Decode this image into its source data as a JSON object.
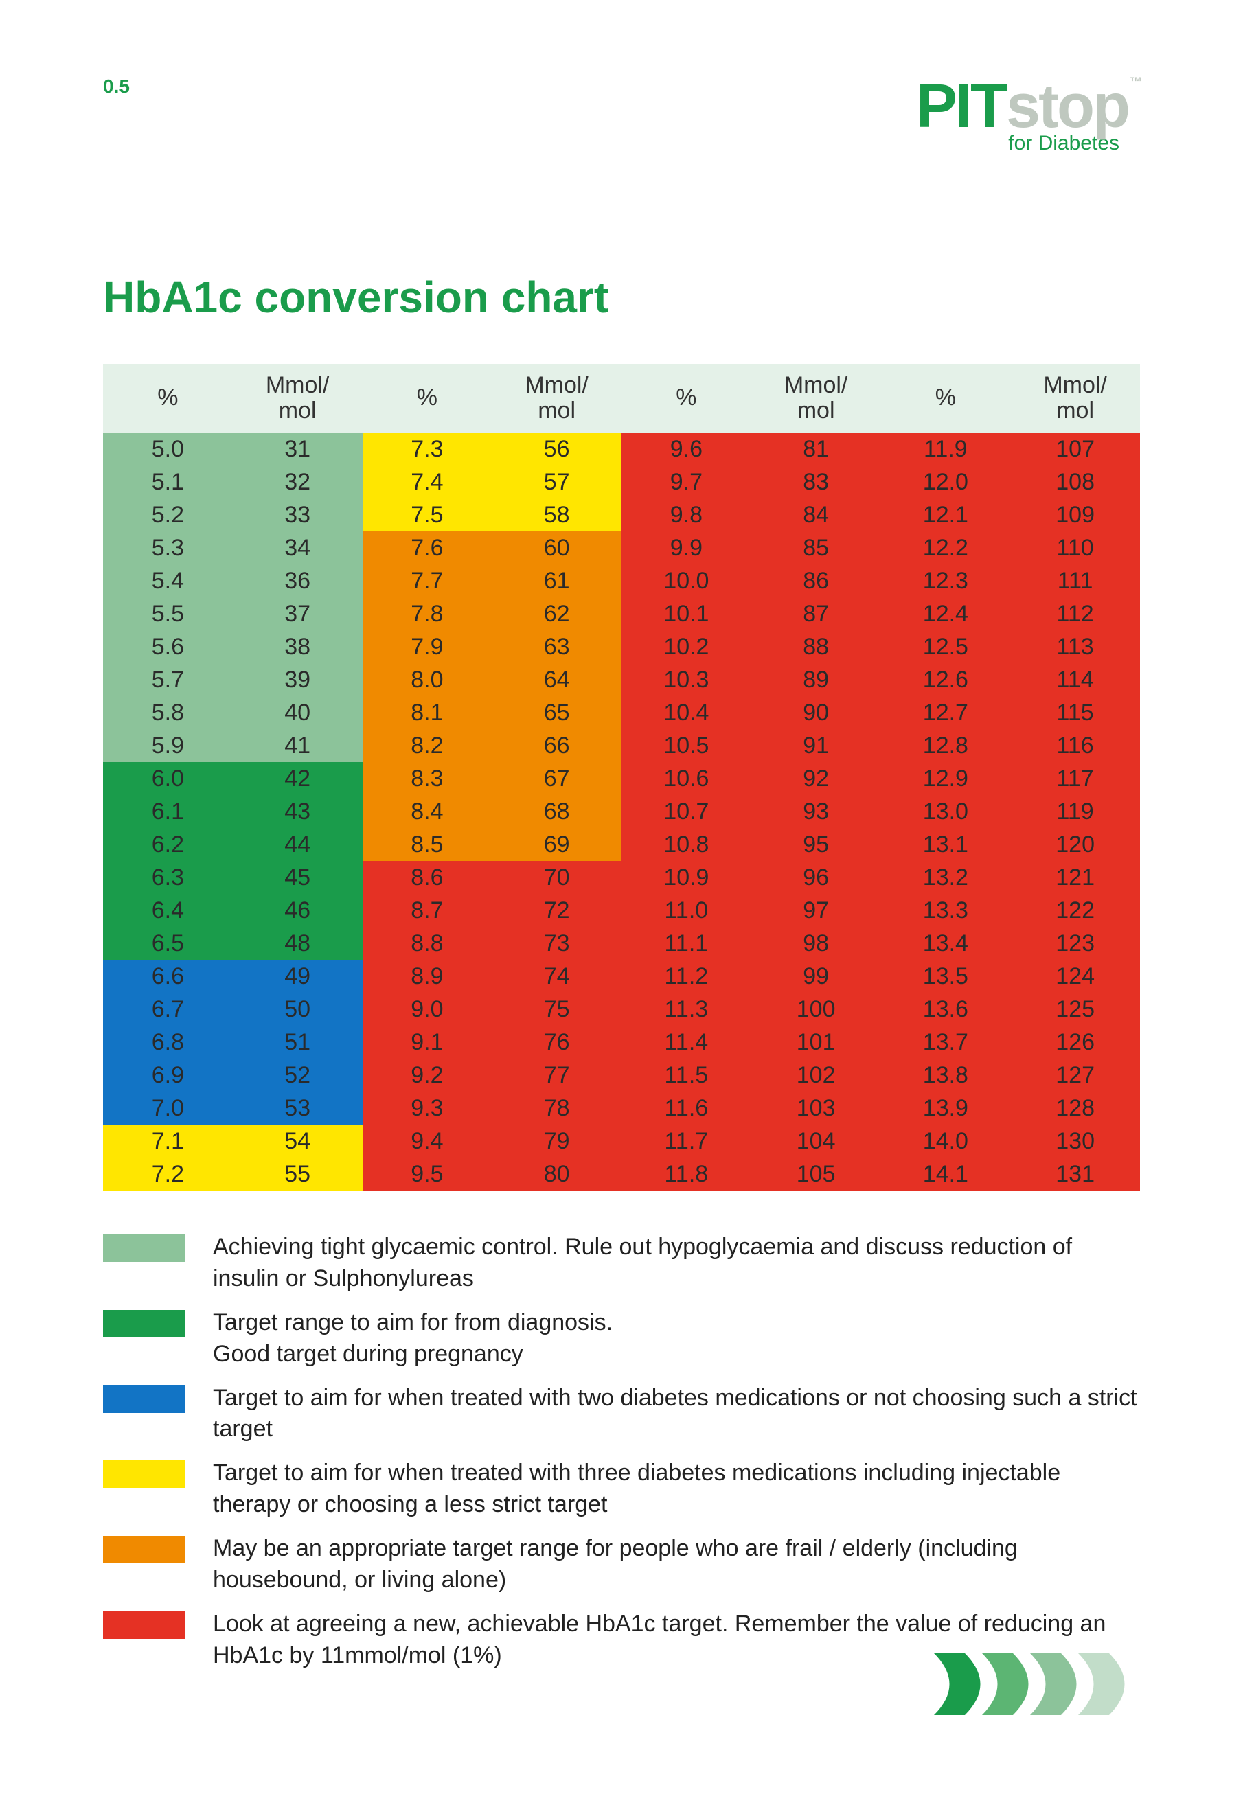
{
  "page_number": "0.5",
  "brand": {
    "pit": "PIT",
    "stop": "stop",
    "tm": "™",
    "sub": "for Diabetes",
    "dots": "▸ ▸ ▸"
  },
  "title": "HbA1c conversion chart",
  "columns": [
    "%",
    "Mmol/\nmol",
    "%",
    "Mmol/\nmol",
    "%",
    "Mmol/\nmol",
    "%",
    "Mmol/\nmol"
  ],
  "colors": {
    "light_green": "#8cc39a",
    "dark_green": "#1a9c4b",
    "blue": "#1274c5",
    "yellow": "#ffe600",
    "orange": "#f08a00",
    "red": "#e53124",
    "header": "#e4f1e8"
  },
  "rows": [
    {
      "c": [
        [
          "5.0",
          "light_green"
        ],
        [
          "31",
          "light_green"
        ],
        [
          "7.3",
          "yellow"
        ],
        [
          "56",
          "yellow"
        ],
        [
          "9.6",
          "red"
        ],
        [
          "81",
          "red"
        ],
        [
          "11.9",
          "red"
        ],
        [
          "107",
          "red"
        ]
      ]
    },
    {
      "c": [
        [
          "5.1",
          "light_green"
        ],
        [
          "32",
          "light_green"
        ],
        [
          "7.4",
          "yellow"
        ],
        [
          "57",
          "yellow"
        ],
        [
          "9.7",
          "red"
        ],
        [
          "83",
          "red"
        ],
        [
          "12.0",
          "red"
        ],
        [
          "108",
          "red"
        ]
      ]
    },
    {
      "c": [
        [
          "5.2",
          "light_green"
        ],
        [
          "33",
          "light_green"
        ],
        [
          "7.5",
          "yellow"
        ],
        [
          "58",
          "yellow"
        ],
        [
          "9.8",
          "red"
        ],
        [
          "84",
          "red"
        ],
        [
          "12.1",
          "red"
        ],
        [
          "109",
          "red"
        ]
      ]
    },
    {
      "c": [
        [
          "5.3",
          "light_green"
        ],
        [
          "34",
          "light_green"
        ],
        [
          "7.6",
          "orange"
        ],
        [
          "60",
          "orange"
        ],
        [
          "9.9",
          "red"
        ],
        [
          "85",
          "red"
        ],
        [
          "12.2",
          "red"
        ],
        [
          "110",
          "red"
        ]
      ]
    },
    {
      "c": [
        [
          "5.4",
          "light_green"
        ],
        [
          "36",
          "light_green"
        ],
        [
          "7.7",
          "orange"
        ],
        [
          "61",
          "orange"
        ],
        [
          "10.0",
          "red"
        ],
        [
          "86",
          "red"
        ],
        [
          "12.3",
          "red"
        ],
        [
          "111",
          "red"
        ]
      ]
    },
    {
      "c": [
        [
          "5.5",
          "light_green"
        ],
        [
          "37",
          "light_green"
        ],
        [
          "7.8",
          "orange"
        ],
        [
          "62",
          "orange"
        ],
        [
          "10.1",
          "red"
        ],
        [
          "87",
          "red"
        ],
        [
          "12.4",
          "red"
        ],
        [
          "112",
          "red"
        ]
      ]
    },
    {
      "c": [
        [
          "5.6",
          "light_green"
        ],
        [
          "38",
          "light_green"
        ],
        [
          "7.9",
          "orange"
        ],
        [
          "63",
          "orange"
        ],
        [
          "10.2",
          "red"
        ],
        [
          "88",
          "red"
        ],
        [
          "12.5",
          "red"
        ],
        [
          "113",
          "red"
        ]
      ]
    },
    {
      "c": [
        [
          "5.7",
          "light_green"
        ],
        [
          "39",
          "light_green"
        ],
        [
          "8.0",
          "orange"
        ],
        [
          "64",
          "orange"
        ],
        [
          "10.3",
          "red"
        ],
        [
          "89",
          "red"
        ],
        [
          "12.6",
          "red"
        ],
        [
          "114",
          "red"
        ]
      ]
    },
    {
      "c": [
        [
          "5.8",
          "light_green"
        ],
        [
          "40",
          "light_green"
        ],
        [
          "8.1",
          "orange"
        ],
        [
          "65",
          "orange"
        ],
        [
          "10.4",
          "red"
        ],
        [
          "90",
          "red"
        ],
        [
          "12.7",
          "red"
        ],
        [
          "115",
          "red"
        ]
      ]
    },
    {
      "c": [
        [
          "5.9",
          "light_green"
        ],
        [
          "41",
          "light_green"
        ],
        [
          "8.2",
          "orange"
        ],
        [
          "66",
          "orange"
        ],
        [
          "10.5",
          "red"
        ],
        [
          "91",
          "red"
        ],
        [
          "12.8",
          "red"
        ],
        [
          "116",
          "red"
        ]
      ]
    },
    {
      "c": [
        [
          "6.0",
          "dark_green"
        ],
        [
          "42",
          "dark_green"
        ],
        [
          "8.3",
          "orange"
        ],
        [
          "67",
          "orange"
        ],
        [
          "10.6",
          "red"
        ],
        [
          "92",
          "red"
        ],
        [
          "12.9",
          "red"
        ],
        [
          "117",
          "red"
        ]
      ]
    },
    {
      "c": [
        [
          "6.1",
          "dark_green"
        ],
        [
          "43",
          "dark_green"
        ],
        [
          "8.4",
          "orange"
        ],
        [
          "68",
          "orange"
        ],
        [
          "10.7",
          "red"
        ],
        [
          "93",
          "red"
        ],
        [
          "13.0",
          "red"
        ],
        [
          "119",
          "red"
        ]
      ]
    },
    {
      "c": [
        [
          "6.2",
          "dark_green"
        ],
        [
          "44",
          "dark_green"
        ],
        [
          "8.5",
          "orange"
        ],
        [
          "69",
          "orange"
        ],
        [
          "10.8",
          "red"
        ],
        [
          "95",
          "red"
        ],
        [
          "13.1",
          "red"
        ],
        [
          "120",
          "red"
        ]
      ]
    },
    {
      "c": [
        [
          "6.3",
          "dark_green"
        ],
        [
          "45",
          "dark_green"
        ],
        [
          "8.6",
          "red"
        ],
        [
          "70",
          "red"
        ],
        [
          "10.9",
          "red"
        ],
        [
          "96",
          "red"
        ],
        [
          "13.2",
          "red"
        ],
        [
          "121",
          "red"
        ]
      ]
    },
    {
      "c": [
        [
          "6.4",
          "dark_green"
        ],
        [
          "46",
          "dark_green"
        ],
        [
          "8.7",
          "red"
        ],
        [
          "72",
          "red"
        ],
        [
          "11.0",
          "red"
        ],
        [
          "97",
          "red"
        ],
        [
          "13.3",
          "red"
        ],
        [
          "122",
          "red"
        ]
      ]
    },
    {
      "c": [
        [
          "6.5",
          "dark_green"
        ],
        [
          "48",
          "dark_green"
        ],
        [
          "8.8",
          "red"
        ],
        [
          "73",
          "red"
        ],
        [
          "11.1",
          "red"
        ],
        [
          "98",
          "red"
        ],
        [
          "13.4",
          "red"
        ],
        [
          "123",
          "red"
        ]
      ]
    },
    {
      "c": [
        [
          "6.6",
          "blue"
        ],
        [
          "49",
          "blue"
        ],
        [
          "8.9",
          "red"
        ],
        [
          "74",
          "red"
        ],
        [
          "11.2",
          "red"
        ],
        [
          "99",
          "red"
        ],
        [
          "13.5",
          "red"
        ],
        [
          "124",
          "red"
        ]
      ]
    },
    {
      "c": [
        [
          "6.7",
          "blue"
        ],
        [
          "50",
          "blue"
        ],
        [
          "9.0",
          "red"
        ],
        [
          "75",
          "red"
        ],
        [
          "11.3",
          "red"
        ],
        [
          "100",
          "red"
        ],
        [
          "13.6",
          "red"
        ],
        [
          "125",
          "red"
        ]
      ]
    },
    {
      "c": [
        [
          "6.8",
          "blue"
        ],
        [
          "51",
          "blue"
        ],
        [
          "9.1",
          "red"
        ],
        [
          "76",
          "red"
        ],
        [
          "11.4",
          "red"
        ],
        [
          "101",
          "red"
        ],
        [
          "13.7",
          "red"
        ],
        [
          "126",
          "red"
        ]
      ]
    },
    {
      "c": [
        [
          "6.9",
          "blue"
        ],
        [
          "52",
          "blue"
        ],
        [
          "9.2",
          "red"
        ],
        [
          "77",
          "red"
        ],
        [
          "11.5",
          "red"
        ],
        [
          "102",
          "red"
        ],
        [
          "13.8",
          "red"
        ],
        [
          "127",
          "red"
        ]
      ]
    },
    {
      "c": [
        [
          "7.0",
          "blue"
        ],
        [
          "53",
          "blue"
        ],
        [
          "9.3",
          "red"
        ],
        [
          "78",
          "red"
        ],
        [
          "11.6",
          "red"
        ],
        [
          "103",
          "red"
        ],
        [
          "13.9",
          "red"
        ],
        [
          "128",
          "red"
        ]
      ]
    },
    {
      "c": [
        [
          "7.1",
          "yellow"
        ],
        [
          "54",
          "yellow"
        ],
        [
          "9.4",
          "red"
        ],
        [
          "79",
          "red"
        ],
        [
          "11.7",
          "red"
        ],
        [
          "104",
          "red"
        ],
        [
          "14.0",
          "red"
        ],
        [
          "130",
          "red"
        ]
      ]
    },
    {
      "c": [
        [
          "7.2",
          "yellow"
        ],
        [
          "55",
          "yellow"
        ],
        [
          "9.5",
          "red"
        ],
        [
          "80",
          "red"
        ],
        [
          "11.8",
          "red"
        ],
        [
          "105",
          "red"
        ],
        [
          "14.1",
          "red"
        ],
        [
          "131",
          "red"
        ]
      ]
    }
  ],
  "legend": [
    {
      "color": "light_green",
      "text": "Achieving tight glycaemic control. Rule out hypoglycaemia and discuss reduction of insulin or Sulphonylureas"
    },
    {
      "color": "dark_green",
      "text": "Target range to aim for from diagnosis.\nGood target during pregnancy"
    },
    {
      "color": "blue",
      "text": "Target to aim for when treated with two diabetes medications or not choosing such a strict target"
    },
    {
      "color": "yellow",
      "text": "Target to aim for when treated with three diabetes medications including injectable therapy or choosing a less strict target"
    },
    {
      "color": "orange",
      "text": "May be an appropriate target range for people who are frail / elderly (including housebound, or living alone)"
    },
    {
      "color": "red",
      "text": "Look at agreeing a new, achievable HbA1c target. Remember the value of reducing an HbA1c by 11mmol/mol (1%)"
    }
  ],
  "footer_arrow_colors": [
    "#1a9c4b",
    "#5cb573",
    "#8cc39a",
    "#c2ddc9"
  ]
}
